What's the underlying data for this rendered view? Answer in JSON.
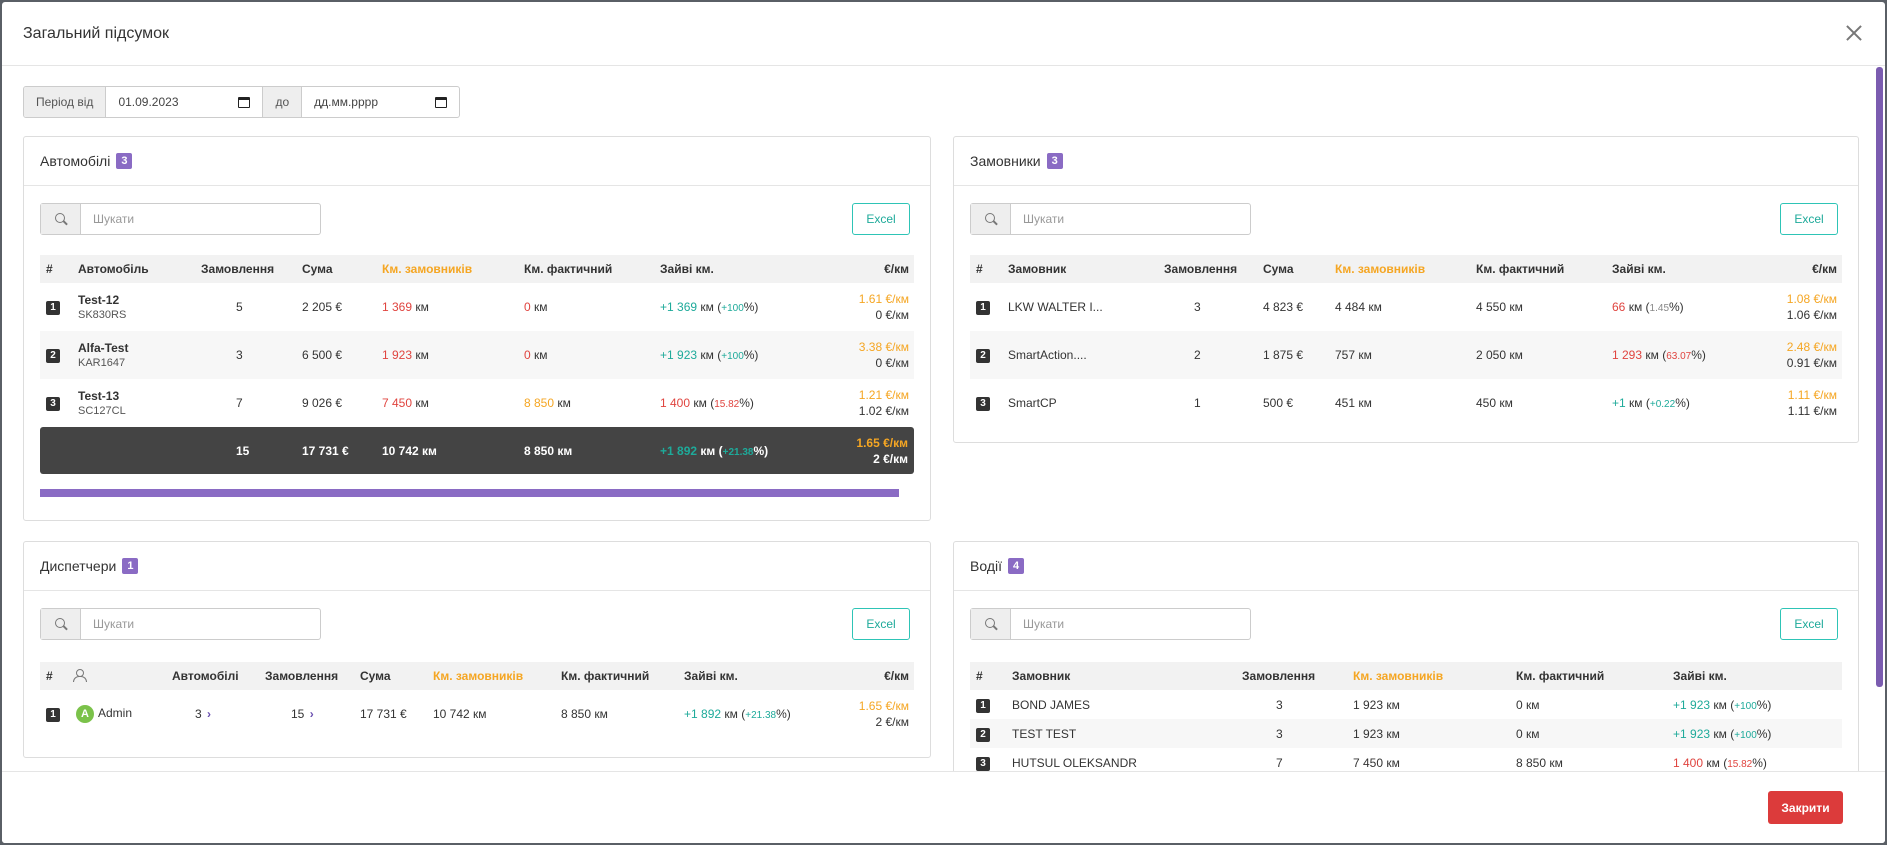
{
  "modal": {
    "title": "Загальний підсумок",
    "close_label": "Закрити"
  },
  "period": {
    "from_label": "Період від",
    "from_value": "01.09.2023",
    "to_label": "до",
    "to_value": "дд.мм.рррр"
  },
  "search_placeholder": "Шукати",
  "excel_label": "Excel",
  "cars": {
    "title": "Автомобілі",
    "count": "3",
    "columns": [
      "#",
      "Автомобіль",
      "Замовлення",
      "Сума",
      "Км. замовників",
      "Км. фактичний",
      "Зайві км.",
      "€/км"
    ],
    "rows": [
      {
        "n": "1",
        "name": "Test-12",
        "plate": "SK830RS",
        "orders": "5",
        "sum": "2 205 €",
        "km_cust": "1 369",
        "km_fact": "0",
        "extra": "+1 369",
        "extra_pct": "+100",
        "rate_cust": "1.61 €/км",
        "rate_fact": "0 €/км"
      },
      {
        "n": "2",
        "name": "Alfa-Test",
        "plate": "KAR1647",
        "orders": "3",
        "sum": "6 500 €",
        "km_cust": "1 923",
        "km_fact": "0",
        "extra": "+1 923",
        "extra_pct": "+100",
        "rate_cust": "3.38 €/км",
        "rate_fact": "0 €/км"
      },
      {
        "n": "3",
        "name": "Test-13",
        "plate": "SC127CL",
        "orders": "7",
        "sum": "9 026 €",
        "km_cust": "7 450",
        "km_fact": "8 850",
        "extra": "1 400",
        "extra_pct": "15.82",
        "rate_cust": "1.21 €/км",
        "rate_fact": "1.02 €/км"
      }
    ],
    "total": {
      "orders": "15",
      "sum": "17 731 €",
      "km_cust": "10 742 км",
      "km_fact": "8 850 км",
      "extra": "+1 892",
      "extra_pct": "+21.38",
      "rate_cust": "1.65 €/км",
      "rate_fact": "2 €/км"
    }
  },
  "customers": {
    "title": "Замовники",
    "count": "3",
    "columns": [
      "#",
      "Замовник",
      "Замовлення",
      "Сума",
      "Км. замовників",
      "Км. фактичний",
      "Зайві км.",
      "€/км"
    ],
    "rows": [
      {
        "n": "1",
        "name": "LKW WALTER I...",
        "orders": "3",
        "sum": "4 823 €",
        "km_cust": "4 484 км",
        "km_fact": "4 550 км",
        "extra": "66",
        "extra_pct": "1.45",
        "rate_cust": "1.08 €/км",
        "rate_fact": "1.06 €/км"
      },
      {
        "n": "2",
        "name": "SmartAction....",
        "orders": "2",
        "sum": "1 875 €",
        "km_cust": "757 км",
        "km_fact": "2 050 км",
        "extra": "1 293",
        "extra_pct": "63.07",
        "rate_cust": "2.48 €/км",
        "rate_fact": "0.91 €/км"
      },
      {
        "n": "3",
        "name": "SmartCP",
        "orders": "1",
        "sum": "500 €",
        "km_cust": "451 км",
        "km_fact": "450 км",
        "extra": "+1",
        "extra_pct": "+0.22",
        "rate_cust": "1.11 €/км",
        "rate_fact": "1.11 €/км"
      }
    ]
  },
  "dispatchers": {
    "title": "Диспетчери",
    "count": "1",
    "columns": [
      "#",
      "",
      "Автомобілі",
      "Замовлення",
      "Сума",
      "Км. замовників",
      "Км. фактичний",
      "Зайві км.",
      "€/км"
    ],
    "rows": [
      {
        "n": "1",
        "avatar": "A",
        "name": "Admin",
        "cars": "3",
        "orders": "15",
        "sum": "17 731 €",
        "km_cust": "10 742 км",
        "km_fact": "8 850 км",
        "extra": "+1 892",
        "extra_pct": "+21.38",
        "rate_cust": "1.65 €/км",
        "rate_fact": "2 €/км"
      }
    ]
  },
  "drivers": {
    "title": "Водії",
    "count": "4",
    "columns": [
      "#",
      "Замовник",
      "Замовлення",
      "Км. замовників",
      "Км. фактичний",
      "Зайві км."
    ],
    "rows": [
      {
        "n": "1",
        "name": "BOND JAMES",
        "orders": "3",
        "km_cust": "1 923 км",
        "km_fact": "0 км",
        "extra": "+1 923",
        "extra_pct": "+100"
      },
      {
        "n": "2",
        "name": "TEST TEST",
        "orders": "3",
        "km_cust": "1 923 км",
        "km_fact": "0 км",
        "extra": "+1 923",
        "extra_pct": "+100"
      },
      {
        "n": "3",
        "name": "HUTSUL OLEKSANDR",
        "orders": "7",
        "km_cust": "7 450 км",
        "km_fact": "8 850 км",
        "extra": "1 400",
        "extra_pct": "15.82"
      }
    ]
  },
  "units": {
    "km": "км"
  }
}
